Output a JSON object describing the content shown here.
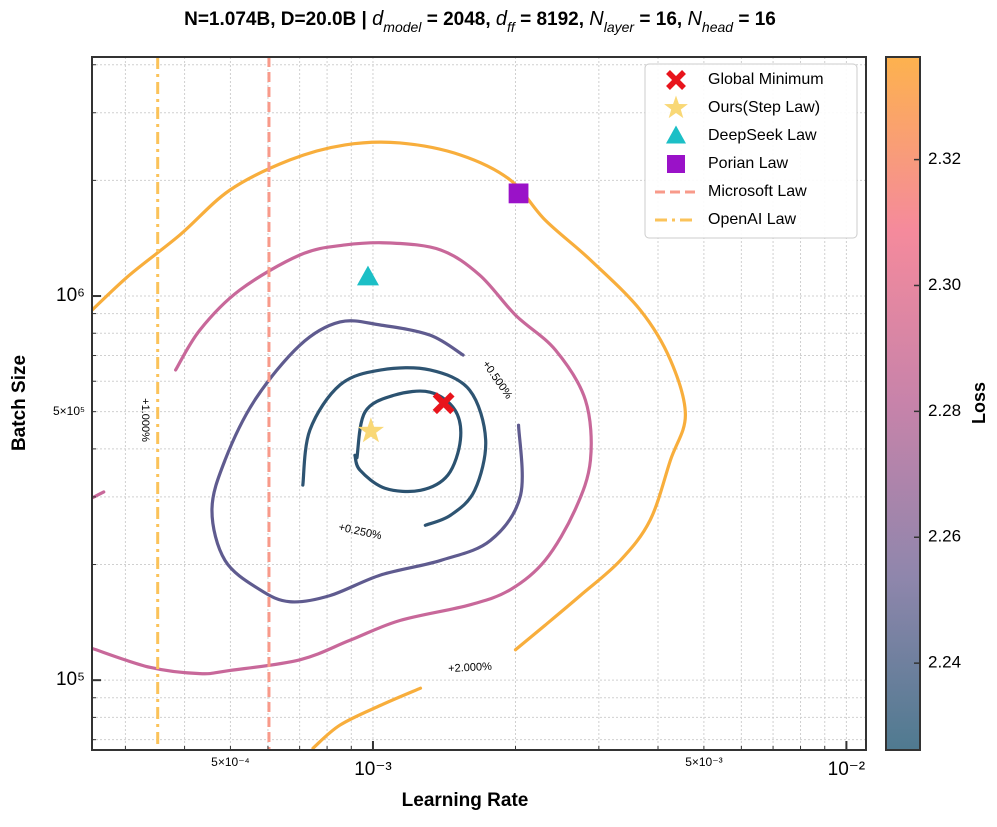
{
  "chart_data": {
    "type": "contour",
    "title": [
      {
        "text": "N=1.074B, D=20.0B | "
      },
      {
        "text": "d",
        "style": "italic"
      },
      {
        "text": "model",
        "style": "sub"
      },
      {
        "text": " = 2048, "
      },
      {
        "text": "d",
        "style": "italic"
      },
      {
        "text": "ff",
        "style": "sub"
      },
      {
        "text": " = 8192, "
      },
      {
        "text": "N",
        "style": "italic"
      },
      {
        "text": "layer",
        "style": "sub"
      },
      {
        "text": " = 16, "
      },
      {
        "text": "N",
        "style": "italic"
      },
      {
        "text": "head",
        "style": "sub"
      },
      {
        "text": " = 16"
      }
    ],
    "xlabel": "Learning Rate",
    "ylabel": "Batch Size",
    "xscale": "log",
    "yscale": "log",
    "grid": true,
    "xlim": [
      0.000255,
      0.011
    ],
    "ylim": [
      65800,
      4190000
    ],
    "xticks": [
      {
        "value": 0.0005,
        "label": "5×10⁻⁴",
        "minor": true
      },
      {
        "value": 0.001,
        "label": "10⁻³"
      },
      {
        "value": 0.005,
        "label": "5×10⁻³",
        "minor": true
      },
      {
        "value": 0.01,
        "label": "10⁻²"
      }
    ],
    "yticks": [
      {
        "value": 100000,
        "label": "10⁵"
      },
      {
        "value": 500000,
        "label": "5×10⁵",
        "minor": true
      },
      {
        "value": 1000000,
        "label": "10⁶"
      }
    ],
    "xminorticks": [
      0.0003,
      0.0004,
      0.0006,
      0.0007,
      0.0008,
      0.0009,
      0.002,
      0.003,
      0.004,
      0.006,
      0.007,
      0.008,
      0.009
    ],
    "yminorticks": [
      70000,
      80000,
      90000,
      200000,
      300000,
      400000,
      600000,
      700000,
      800000,
      900000,
      2000000,
      3000000,
      4000000
    ],
    "contours": [
      {
        "color": "#2b5270",
        "x": [
          0.000925,
          0.000962,
          0.00111,
          0.00132,
          0.00149,
          0.00153,
          0.00144,
          0.00126,
          0.00106,
          0.000939,
          0.000916
        ],
        "y": [
          379000,
          499000,
          552000,
          562000,
          505000,
          422000,
          342000,
          312000,
          316000,
          352000,
          385000
        ]
      },
      {
        "color": "#2e5472",
        "x": [
          0.000711,
          0.000736,
          0.000852,
          0.00104,
          0.00132,
          0.0016,
          0.00173,
          0.00164,
          0.00146,
          0.00129
        ],
        "y": [
          322000,
          448000,
          587000,
          642000,
          642000,
          569000,
          422000,
          312000,
          269000,
          253000
        ]
      },
      {
        "color": "#5f5b8f",
        "x": [
          0.00155,
          0.00132,
          0.00104,
          0.000852,
          0.000701,
          0.000563,
          0.000487,
          0.000457,
          0.000487,
          0.000577,
          0.000668,
          0.000811,
          0.00104,
          0.00139,
          0.00177,
          0.00205,
          0.00203
        ],
        "y": [
          702000,
          791000,
          840000,
          856000,
          745000,
          536000,
          374000,
          277000,
          205000,
          172000,
          160000,
          166000,
          188000,
          205000,
          231000,
          303000,
          461000
        ]
      },
      {
        "color": "#c8689a",
        "x": [
          0.000383,
          0.000431,
          0.000523,
          0.000701,
          0.000873,
          0.00109,
          0.00139,
          0.00168,
          0.002,
          0.00243,
          0.00281,
          0.00288,
          0.00267,
          0.00231,
          0.00195,
          0.0016,
          0.00114,
          0.000894,
          0.000701,
          0.000499,
          0.000431,
          0.000338,
          0.000255,
          null,
          0.000255,
          0.00027
        ],
        "y": [
          642000,
          816000,
          1036000,
          1279000,
          1358000,
          1374000,
          1318000,
          1134000,
          892000,
          723000,
          536000,
          374000,
          277000,
          205000,
          172000,
          157000,
          143000,
          127000,
          113000,
          106000,
          104000,
          108000,
          121000,
          null,
          298000,
          309000
        ]
      },
      {
        "color": "#f8ae3c",
        "x": [
          0.000255,
          0.000306,
          0.000391,
          0.000499,
          0.000668,
          0.000873,
          0.00114,
          0.00153,
          0.00195,
          0.00231,
          0.00288,
          0.00367,
          0.00425,
          0.00457,
          0.00425,
          0.00385,
          0.00333,
          0.00274,
          0.00231,
          0.002,
          null,
          0.000747,
          0.000852,
          0.00104,
          0.00126
        ],
        "y": [
          919000,
          1134000,
          1442000,
          1888000,
          2261000,
          2474000,
          2503000,
          2329000,
          2005000,
          1577000,
          1241000,
          919000,
          681000,
          490000,
          374000,
          261000,
          205000,
          166000,
          139000,
          120000,
          null,
          66500,
          76400,
          86100,
          95300
        ]
      }
    ],
    "contour_labels": [
      "+1.000%",
      "+0.500%",
      "+0.250%",
      "+2.000%"
    ],
    "vlines": [
      {
        "name": "Microsoft Law",
        "x": 0.000603,
        "color": "#f89a8a",
        "dash": "dashed"
      },
      {
        "name": "OpenAI Law",
        "x": 0.000351,
        "color": "#fbc35a",
        "dash": "dashdot"
      }
    ],
    "markers": [
      {
        "name": "Global Minimum",
        "x": 0.00141,
        "y": 526000,
        "color": "#e8141c",
        "symbol": "x"
      },
      {
        "name": "Ours(Step Law)",
        "x": 0.00099,
        "y": 445000,
        "color": "#f9d876",
        "symbol": "star"
      },
      {
        "name": "DeepSeek Law",
        "x": 0.000976,
        "y": 1120000,
        "color": "#1cbfc6",
        "symbol": "triangle"
      },
      {
        "name": "Porian Law",
        "x": 0.00203,
        "y": 1850000,
        "color": "#9a12c8",
        "symbol": "square"
      }
    ],
    "legend_position": "upper right",
    "colorbar": {
      "label": "Loss",
      "lim": [
        2.2262,
        2.3363
      ],
      "ticks": [
        2.24,
        2.26,
        2.28,
        2.3,
        2.32
      ],
      "colors": [
        "#4f7a90",
        "#8f86ac",
        "#c783aa",
        "#f58a9c",
        "#fdb24e"
      ]
    }
  }
}
